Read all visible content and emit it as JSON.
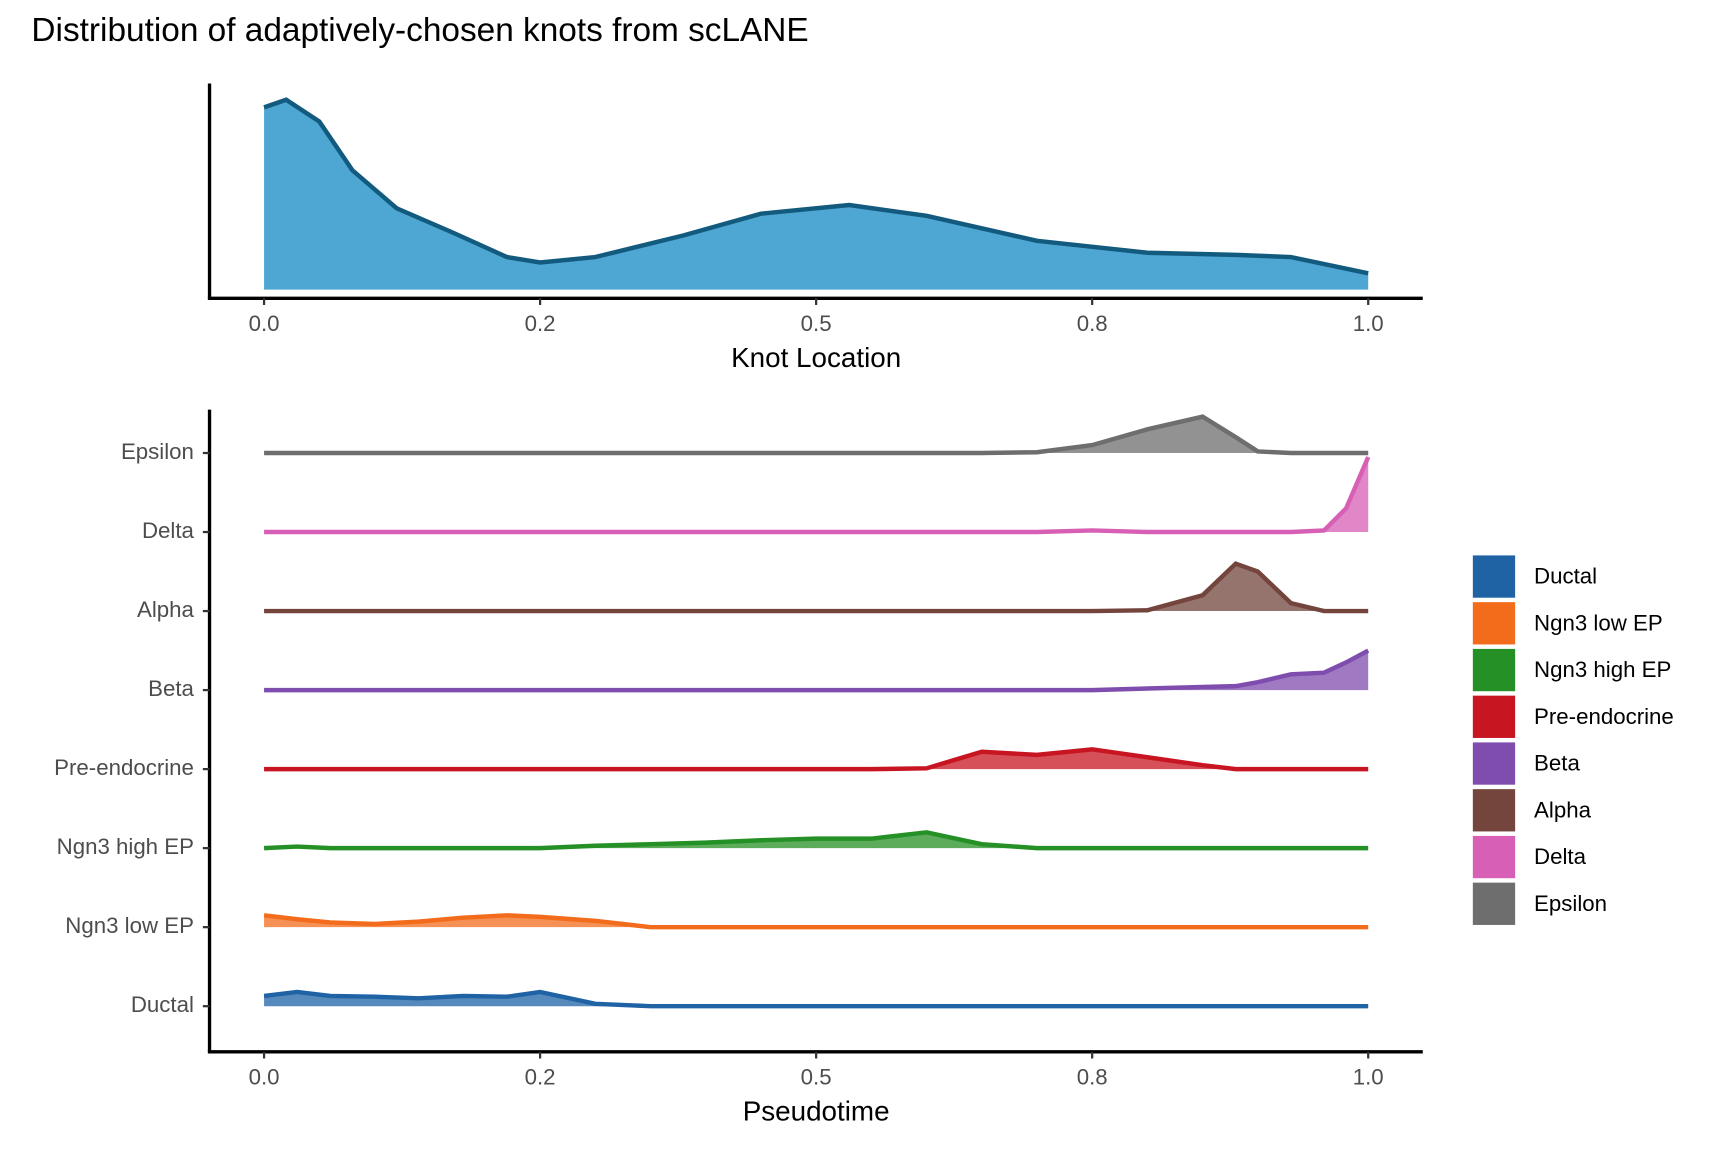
{
  "chart_data": [
    {
      "type": "area",
      "title": "Distribution of adaptively-chosen knots from scLANE",
      "xlabel": "Knot Location",
      "x": [
        0,
        0.02,
        0.05,
        0.08,
        0.12,
        0.17,
        0.22,
        0.25,
        0.3,
        0.38,
        0.45,
        0.53,
        0.6,
        0.7,
        0.8,
        0.88,
        0.93,
        1.0
      ],
      "values": [
        1.68,
        1.75,
        1.55,
        1.1,
        0.75,
        0.53,
        0.3,
        0.25,
        0.3,
        0.5,
        0.7,
        0.78,
        0.68,
        0.45,
        0.34,
        0.32,
        0.3,
        0.15
      ],
      "color": "#4ea6d3",
      "line_color": "#135a7f",
      "xlim": [
        0,
        1
      ],
      "ylim": [
        -0.08,
        1.9
      ],
      "xticks": [
        {
          "value": 0,
          "label": "0.0"
        },
        {
          "value": 0.25,
          "label": "0.2"
        },
        0.5,
        {
          "value": 0.75,
          "label": "0.8"
        },
        {
          "value": 1,
          "label": "1.0"
        }
      ]
    },
    {
      "type": "ridgeline",
      "xlabel": "Pseudotime",
      "x": [
        0,
        0.03,
        0.06,
        0.1,
        0.14,
        0.18,
        0.22,
        0.25,
        0.3,
        0.35,
        0.4,
        0.45,
        0.5,
        0.55,
        0.6,
        0.65,
        0.7,
        0.75,
        0.8,
        0.85,
        0.88,
        0.9,
        0.93,
        0.96,
        0.98,
        1.0
      ],
      "xlim": [
        0,
        1
      ],
      "xticks": [
        {
          "value": 0,
          "label": "0.0"
        },
        {
          "value": 0.25,
          "label": "0.2"
        },
        0.5,
        {
          "value": 0.75,
          "label": "0.8"
        },
        {
          "value": 1,
          "label": "1.0"
        }
      ],
      "categories": [
        "Ductal",
        "Ngn3 low EP",
        "Ngn3 high EP",
        "Pre-endocrine",
        "Beta",
        "Alpha",
        "Delta",
        "Epsilon"
      ],
      "legend": "right",
      "series": [
        {
          "name": "Ductal",
          "color": "#1f63a5",
          "values": [
            0.13,
            0.18,
            0.13,
            0.12,
            0.1,
            0.13,
            0.12,
            0.18,
            0.03,
            0,
            0,
            0,
            0,
            0,
            0,
            0,
            0,
            0,
            0,
            0,
            0,
            0,
            0,
            0,
            0,
            0
          ]
        },
        {
          "name": "Ngn3 low EP",
          "color": "#f26c1c",
          "values": [
            0.15,
            0.1,
            0.06,
            0.04,
            0.07,
            0.12,
            0.15,
            0.13,
            0.08,
            0,
            0,
            0,
            0,
            0,
            0,
            0,
            0,
            0,
            0,
            0,
            0,
            0,
            0,
            0,
            0,
            0
          ]
        },
        {
          "name": "Ngn3 high EP",
          "color": "#259025",
          "values": [
            0,
            0.02,
            0,
            0,
            0,
            0,
            0,
            0,
            0.03,
            0.05,
            0.07,
            0.1,
            0.12,
            0.12,
            0.2,
            0.05,
            0,
            0,
            0,
            0,
            0,
            0,
            0,
            0,
            0,
            0
          ]
        },
        {
          "name": "Pre-endocrine",
          "color": "#c81522",
          "values": [
            0,
            0,
            0,
            0,
            0,
            0,
            0,
            0,
            0,
            0,
            0,
            0,
            0,
            0,
            0.01,
            0.22,
            0.18,
            0.25,
            0.15,
            0.05,
            0,
            0,
            0,
            0,
            0,
            0
          ]
        },
        {
          "name": "Beta",
          "color": "#7f4dad",
          "values": [
            0,
            0,
            0,
            0,
            0,
            0,
            0,
            0,
            0,
            0,
            0,
            0,
            0,
            0,
            0,
            0,
            0,
            0,
            0.02,
            0.04,
            0.05,
            0.1,
            0.2,
            0.22,
            0.35,
            0.5
          ]
        },
        {
          "name": "Alpha",
          "color": "#73453d",
          "values": [
            0,
            0,
            0,
            0,
            0,
            0,
            0,
            0,
            0,
            0,
            0,
            0,
            0,
            0,
            0,
            0,
            0,
            0,
            0.01,
            0.2,
            0.6,
            0.5,
            0.1,
            0,
            0,
            0
          ]
        },
        {
          "name": "Delta",
          "color": "#d75fb5",
          "values": [
            0,
            0,
            0,
            0,
            0,
            0,
            0,
            0,
            0,
            0,
            0,
            0,
            0,
            0,
            0,
            0,
            0,
            0.02,
            0,
            0,
            0,
            0,
            0,
            0.02,
            0.3,
            0.95
          ]
        },
        {
          "name": "Epsilon",
          "color": "#6e6e6e",
          "values": [
            0,
            0,
            0,
            0,
            0,
            0,
            0,
            0,
            0,
            0,
            0,
            0,
            0,
            0,
            0,
            0,
            0.01,
            0.1,
            0.3,
            0.46,
            0.2,
            0.02,
            0,
            0,
            0,
            0
          ]
        }
      ]
    }
  ]
}
